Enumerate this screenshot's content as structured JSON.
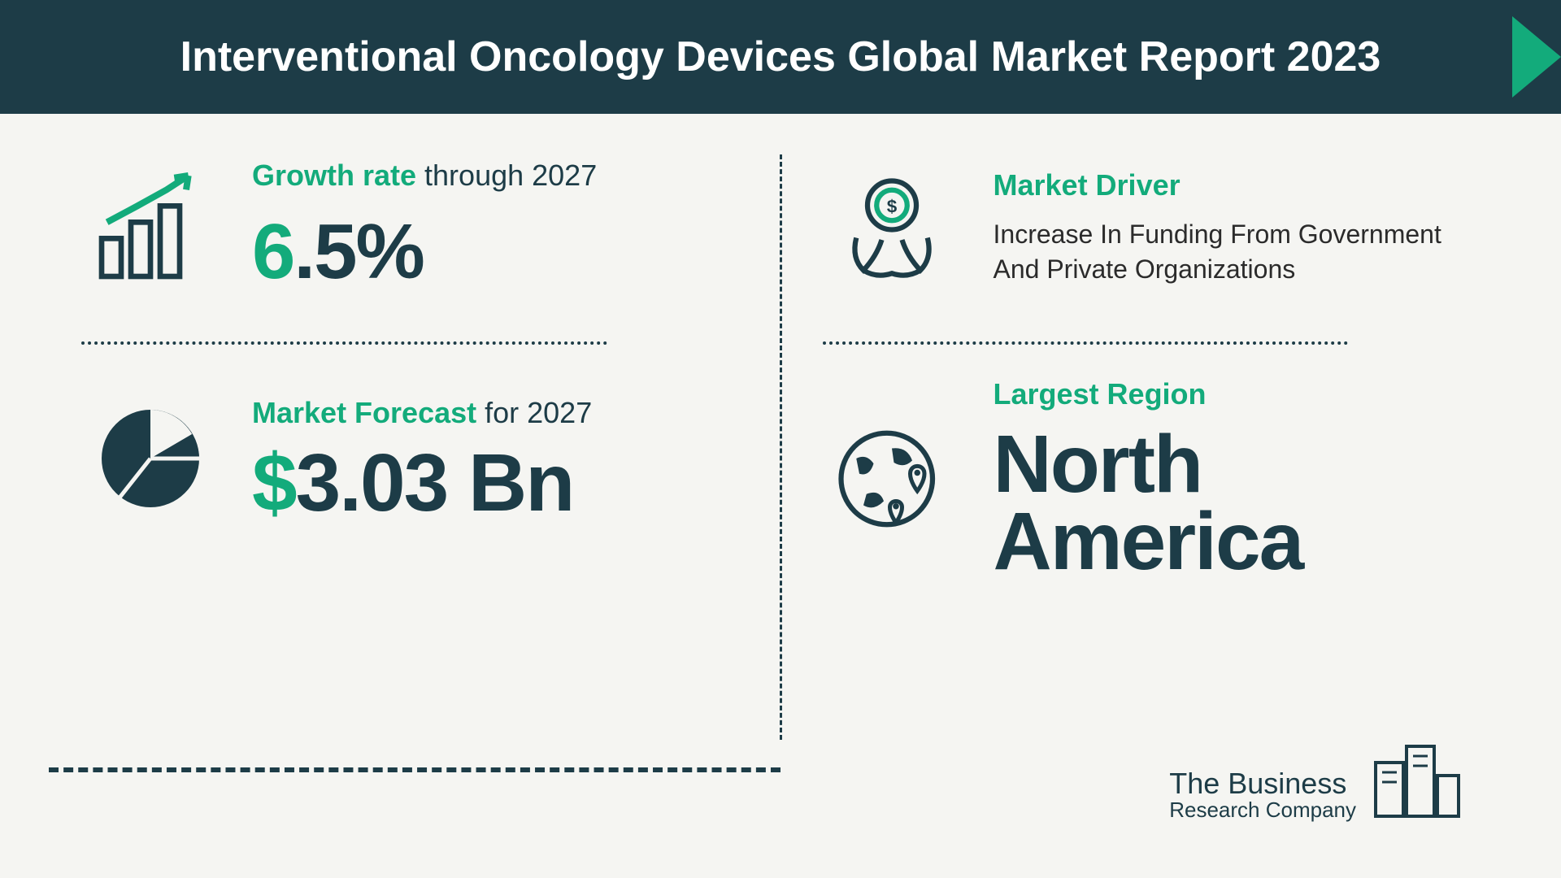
{
  "colors": {
    "header_bg": "#1d3c47",
    "header_text": "#ffffff",
    "accent": "#13ab7b",
    "dark": "#1d3c47",
    "divider": "#1d3c47",
    "body_text": "#2b2b2b",
    "arrow": "#13ab7b"
  },
  "header": {
    "title": "Interventional Oncology Devices Global Market Report 2023"
  },
  "quad": {
    "growth": {
      "label_accent": "Growth rate",
      "label_rest": " through 2027",
      "value": "6.5%",
      "font_size": 96
    },
    "forecast": {
      "label_accent": "Market Forecast",
      "label_rest": " for 2027",
      "value": "$3.03 Bn",
      "font_size": 100
    },
    "driver": {
      "label_accent": "Market Driver",
      "text": "Increase In Funding From Government And Private Organizations"
    },
    "region": {
      "label_accent": "Largest Region",
      "value": "North America",
      "font_size": 100
    }
  },
  "logo": {
    "line1": "The Business",
    "line2": "Research Company"
  }
}
